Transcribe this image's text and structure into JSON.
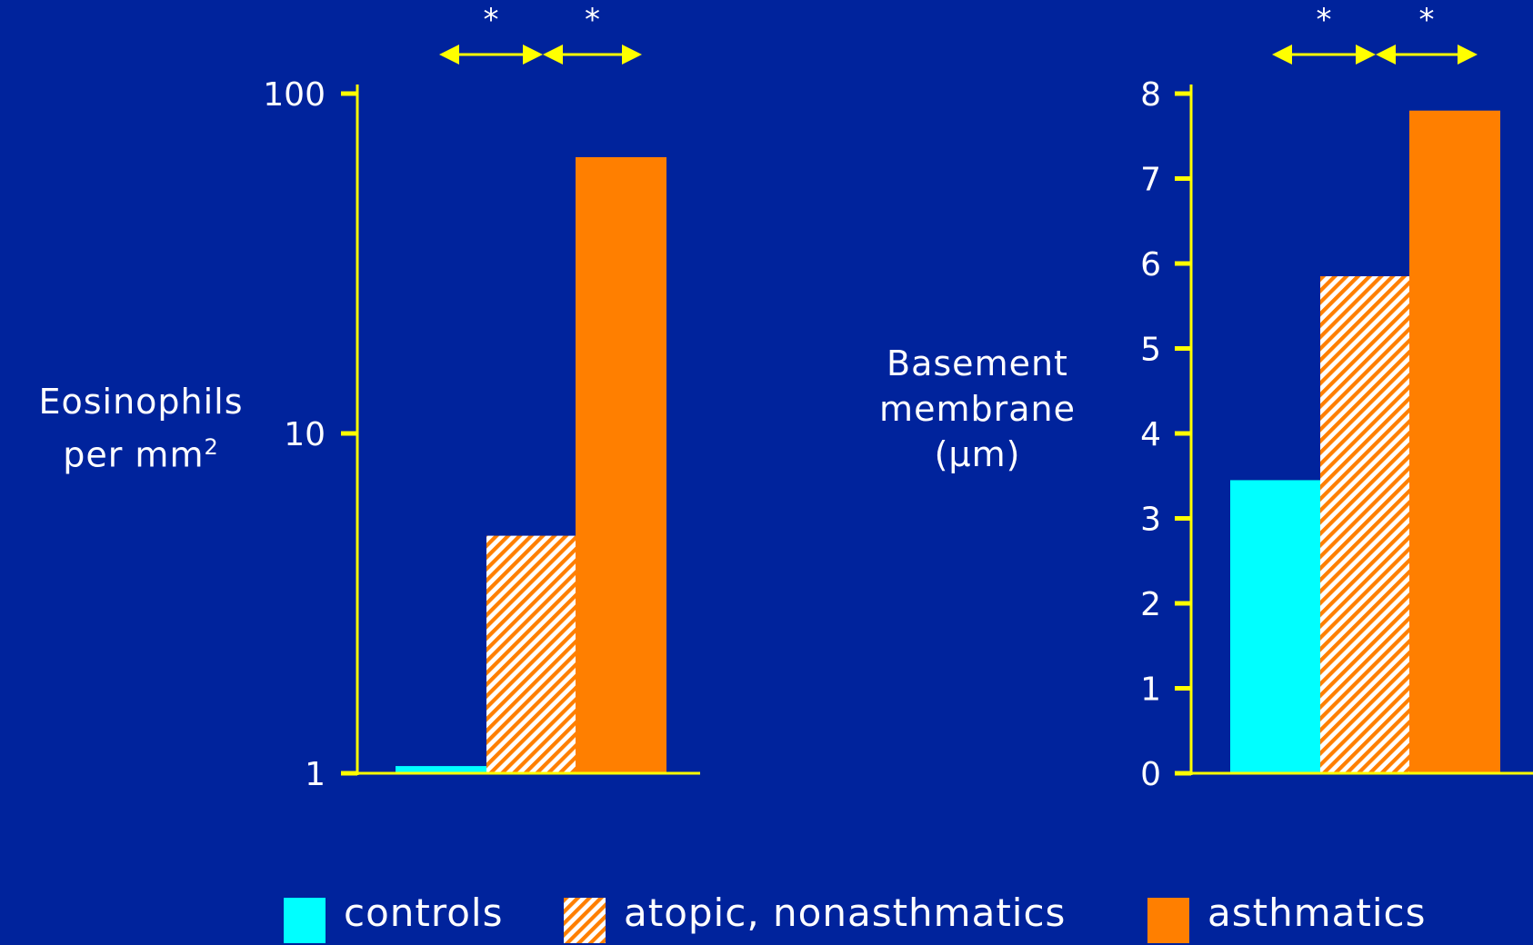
{
  "chart_data": [
    {
      "type": "bar",
      "yscale": "log",
      "ylabel": "Eosinophils",
      "ylabel_line2": "per mm",
      "ylabel_superscript": "2",
      "ylim": [
        1,
        100
      ],
      "yticks": [
        "1",
        "10",
        "100"
      ],
      "categories": [
        "controls",
        "atopic, nonasthmatics",
        "asthmatics"
      ],
      "values": [
        1.05,
        5.0,
        65
      ],
      "significance": [
        {
          "between": [
            "controls",
            "atopic, nonasthmatics"
          ],
          "label": "*"
        },
        {
          "between": [
            "atopic, nonasthmatics",
            "asthmatics"
          ],
          "label": "*"
        }
      ]
    },
    {
      "type": "bar",
      "yscale": "linear",
      "ylabel": "Basement",
      "ylabel_line2": "membrane",
      "ylabel_line3": "(µm)",
      "ylim": [
        0,
        8
      ],
      "yticks": [
        "0",
        "1",
        "2",
        "3",
        "4",
        "5",
        "6",
        "7",
        "8"
      ],
      "categories": [
        "controls",
        "atopic, nonasthmatics",
        "asthmatics"
      ],
      "values": [
        3.45,
        5.85,
        7.8
      ],
      "significance": [
        {
          "between": [
            "controls",
            "atopic, nonasthmatics"
          ],
          "label": "*"
        },
        {
          "between": [
            "atopic, nonasthmatics",
            "asthmatics"
          ],
          "label": "*"
        }
      ]
    }
  ],
  "legend": [
    {
      "label": "controls",
      "style": "solid",
      "color": "#00FFFF"
    },
    {
      "label": "atopic, nonasthmatics",
      "style": "hatched",
      "color": "#FF7F00"
    },
    {
      "label": "asthmatics",
      "style": "solid",
      "color": "#FF7F00"
    }
  ],
  "colors": {
    "background": "#00239C",
    "axis": "#FFFF00",
    "controls": "#00FFFF",
    "asthmatics": "#FF7F00",
    "hatch_base": "#FFFFFF",
    "text": "#FFFFFF"
  }
}
